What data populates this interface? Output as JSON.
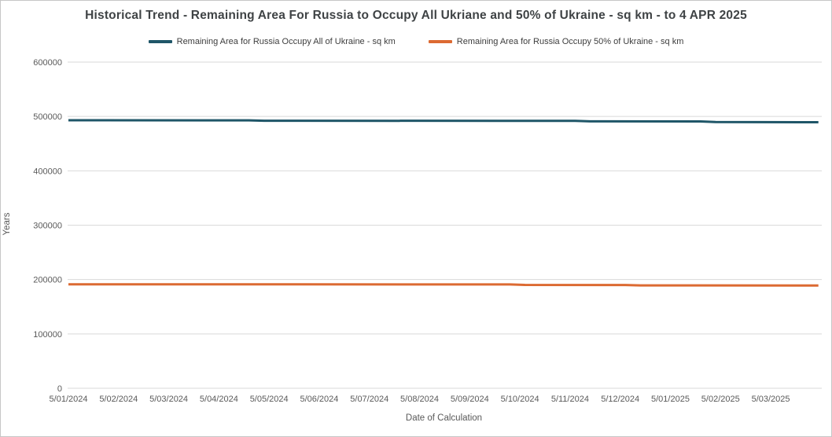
{
  "chart_data": {
    "type": "line",
    "title": "Historical Trend - Remaining Area For Russia to Occupy All Ukriane and 50% of Ukraine - sq km - to 4 APR 2025",
    "xlabel": "Date of Calculation",
    "ylabel": "Years",
    "x_tick_labels": [
      "5/01/2024",
      "5/02/2024",
      "5/03/2024",
      "5/04/2024",
      "5/05/2024",
      "5/06/2024",
      "5/07/2024",
      "5/08/2024",
      "5/09/2024",
      "5/10/2024",
      "5/11/2024",
      "5/12/2024",
      "5/01/2025",
      "5/02/2025",
      "5/03/2025"
    ],
    "xlim": [
      0,
      14.95
    ],
    "ylim": [
      0,
      600000
    ],
    "y_ticks": [
      0,
      100000,
      200000,
      300000,
      400000,
      500000,
      600000
    ],
    "grid": "horizontal",
    "gridline_color": "#d9d9d9",
    "legend_position": "top",
    "series": [
      {
        "name": "Remaining Area for Russia Occupy All of Ukraine - sq km",
        "color": "#1f5668",
        "points": [
          {
            "x": 0,
            "y": 493000
          },
          {
            "x": 3.6,
            "y": 492800
          },
          {
            "x": 3.9,
            "y": 492100
          },
          {
            "x": 10.1,
            "y": 491800
          },
          {
            "x": 10.4,
            "y": 491000
          },
          {
            "x": 12.6,
            "y": 490900
          },
          {
            "x": 12.9,
            "y": 489700
          },
          {
            "x": 14.95,
            "y": 489400
          }
        ]
      },
      {
        "name": "Remaining Area for Russia Occupy 50% of Ukraine - sq km",
        "color": "#dc6a32",
        "points": [
          {
            "x": 0,
            "y": 191300
          },
          {
            "x": 8.8,
            "y": 191000
          },
          {
            "x": 9.1,
            "y": 190100
          },
          {
            "x": 11.1,
            "y": 190000
          },
          {
            "x": 11.4,
            "y": 189200
          },
          {
            "x": 14.95,
            "y": 188900
          }
        ]
      }
    ]
  }
}
